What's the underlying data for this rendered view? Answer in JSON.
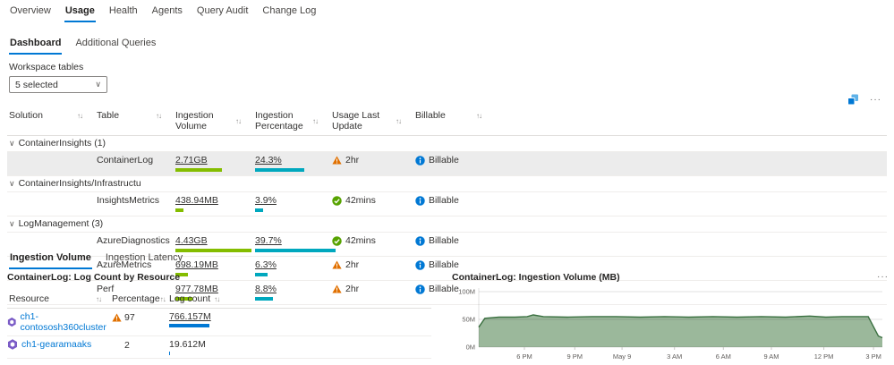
{
  "nav": {
    "tabs": [
      {
        "label": "Overview"
      },
      {
        "label": "Usage",
        "active": true
      },
      {
        "label": "Health"
      },
      {
        "label": "Agents"
      },
      {
        "label": "Query Audit"
      },
      {
        "label": "Change Log"
      }
    ]
  },
  "subnav": {
    "tabs": [
      {
        "label": "Dashboard",
        "active": true
      },
      {
        "label": "Additional Queries"
      }
    ]
  },
  "filters": {
    "label": "Workspace tables",
    "value": "5 selected"
  },
  "icons": {
    "sort": "↑↓",
    "chevron": "∨",
    "ellipsis": "···"
  },
  "usage_table": {
    "columns": [
      "Solution",
      "Table",
      "Ingestion Volume",
      "Ingestion Percentage",
      "Usage Last Update",
      "Billable"
    ],
    "groups": [
      {
        "name": "ContainerInsights (1)",
        "rows": [
          {
            "table": "ContainerLog",
            "volume": "2.71GB",
            "volume_bar": 61,
            "pct": "24.3%",
            "pct_bar": 61,
            "update": "2hr",
            "update_status": "warning",
            "billable": "Billable",
            "selected": true
          }
        ]
      },
      {
        "name": "ContainerInsights/Infrastructu",
        "rows": [
          {
            "table": "InsightsMetrics",
            "volume": "438.94MB",
            "volume_bar": 10,
            "pct": "3.9%",
            "pct_bar": 10,
            "update": "42mins",
            "update_status": "success",
            "billable": "Billable"
          }
        ]
      },
      {
        "name": "LogManagement (3)",
        "rows": [
          {
            "table": "AzureDiagnostics",
            "volume": "4.43GB",
            "volume_bar": 100,
            "pct": "39.7%",
            "pct_bar": 100,
            "update": "42mins",
            "update_status": "success",
            "billable": "Billable"
          },
          {
            "table": "AzureMetrics",
            "volume": "698.19MB",
            "volume_bar": 16,
            "pct": "6.3%",
            "pct_bar": 16,
            "update": "2hr",
            "update_status": "warning",
            "billable": "Billable"
          },
          {
            "table": "Perf",
            "volume": "977.78MB",
            "volume_bar": 22,
            "pct": "8.8%",
            "pct_bar": 22,
            "update": "2hr",
            "update_status": "warning",
            "billable": "Billable"
          }
        ]
      }
    ]
  },
  "detail_tabs": [
    {
      "label": "Ingestion Volume",
      "active": true
    },
    {
      "label": "Ingestion Latency"
    }
  ],
  "resource_table": {
    "title": "ContainerLog: Log Count by Resource",
    "columns": [
      "Resource",
      "Percentage",
      "Log count"
    ],
    "rows": [
      {
        "resource": "ch1-contososh360cluster",
        "percentage": "97",
        "warning": true,
        "log_count": "766.157M",
        "bar": 100
      },
      {
        "resource": "ch1-gearamaaks",
        "percentage": "2",
        "warning": false,
        "log_count": "19.612M",
        "bar": 3
      }
    ]
  },
  "chart_data": {
    "type": "area",
    "title": "ContainerLog: Ingestion Volume (MB)",
    "xlabel": "",
    "ylabel": "MB",
    "ylim": [
      0,
      100
    ],
    "grid": true,
    "legend": "none",
    "fill": "#9bb89b",
    "stroke": "#3a7040",
    "y_ticks": [
      {
        "value": 0,
        "label": "0M"
      },
      {
        "value": 50,
        "label": "50M"
      },
      {
        "value": 100,
        "label": "100M"
      }
    ],
    "x_ticks": [
      {
        "f": 0.113,
        "label": "6 PM"
      },
      {
        "f": 0.238,
        "label": "9 PM"
      },
      {
        "f": 0.355,
        "label": "May 9"
      },
      {
        "f": 0.485,
        "label": "3 AM"
      },
      {
        "f": 0.606,
        "label": "6 AM"
      },
      {
        "f": 0.725,
        "label": "9 AM"
      },
      {
        "f": 0.855,
        "label": "12 PM"
      },
      {
        "f": 0.978,
        "label": "3 PM"
      }
    ],
    "series": [
      {
        "name": "Ingestion Volume (MB)",
        "points": [
          [
            0,
            36
          ],
          [
            0.015,
            52
          ],
          [
            0.05,
            54
          ],
          [
            0.09,
            54
          ],
          [
            0.12,
            55
          ],
          [
            0.135,
            58
          ],
          [
            0.16,
            55
          ],
          [
            0.22,
            54
          ],
          [
            0.28,
            55
          ],
          [
            0.34,
            55
          ],
          [
            0.4,
            54
          ],
          [
            0.46,
            55
          ],
          [
            0.52,
            54
          ],
          [
            0.58,
            55
          ],
          [
            0.64,
            54
          ],
          [
            0.7,
            55
          ],
          [
            0.76,
            54
          ],
          [
            0.82,
            56
          ],
          [
            0.86,
            54
          ],
          [
            0.9,
            55
          ],
          [
            0.94,
            55
          ],
          [
            0.965,
            55
          ],
          [
            0.99,
            20
          ],
          [
            1,
            17
          ]
        ]
      }
    ]
  },
  "colors": {
    "accent": "#0078d4",
    "link": "#0078d4",
    "green_bar": "#84bd00",
    "teal_bar": "#00a8be",
    "warning": "#e17000",
    "success": "#57a300",
    "info": "#0078d4",
    "count_bar": "#0078d4",
    "selected_row": "#ececec",
    "cluster": "#7a5bc6",
    "icon_light_blue": "#5fb2e8"
  }
}
